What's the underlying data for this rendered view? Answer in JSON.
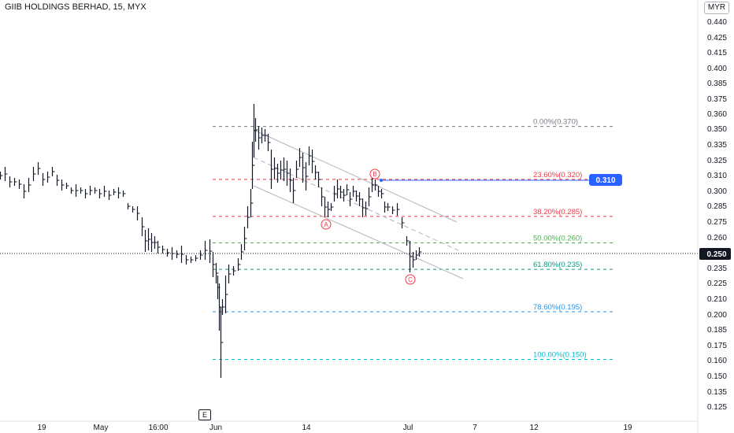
{
  "header": {
    "symbol_title": "GIIB HOLDINGS BERHAD, 15, MYX",
    "currency": "MYR"
  },
  "earnings_marker": "E",
  "colors": {
    "candle": "#131722",
    "channel": "#b2b5be",
    "fib_0": "#787b86",
    "fib_236": "#f23645",
    "fib_382": "#f23645",
    "fib_50": "#4caf50",
    "fib_618": "#089981",
    "fib_786": "#2196f3",
    "fib_100": "#00bcd4",
    "wave_label": "#f23645",
    "horizontal_ray": "#2962ff",
    "price_badge": "#2962ff",
    "current_price_badge": "#131722",
    "axis_text": "#131722"
  },
  "price_axis": {
    "ticks": [
      "0.440",
      "0.425",
      "0.415",
      "0.400",
      "0.385",
      "0.375",
      "0.360",
      "0.350",
      "0.335",
      "0.325",
      "0.310",
      "0.300",
      "0.285",
      "0.275",
      "0.260",
      "0.250",
      "0.235",
      "0.225",
      "0.210",
      "0.200",
      "0.185",
      "0.175",
      "0.160",
      "0.150",
      "0.135",
      "0.125"
    ]
  },
  "time_axis": {
    "ticks": [
      "19",
      "May",
      "16:00",
      "Jun",
      "14",
      "Jul",
      "7",
      "12",
      "19"
    ]
  },
  "fibonacci": {
    "levels": [
      {
        "label": "0.00%(0.370)",
        "price": 0.37,
        "color": "#787b86"
      },
      {
        "label": "23.60%(0.320)",
        "price": 0.32,
        "color": "#f23645"
      },
      {
        "label": "38.20%(0.285)",
        "price": 0.285,
        "color": "#f23645"
      },
      {
        "label": "50.00%(0.260)",
        "price": 0.26,
        "color": "#4caf50"
      },
      {
        "label": "61.80%(0.235)",
        "price": 0.235,
        "color": "#089981"
      },
      {
        "label": "78.60%(0.195)",
        "price": 0.195,
        "color": "#2196f3"
      },
      {
        "label": "100.00%(0.150)",
        "price": 0.15,
        "color": "#00bcd4"
      }
    ]
  },
  "wave_labels": [
    "A",
    "B",
    "C"
  ],
  "horizontal_ray": {
    "price": 0.31,
    "label": "0.310"
  },
  "current_price": {
    "price": 0.25,
    "label": "0.250"
  }
}
